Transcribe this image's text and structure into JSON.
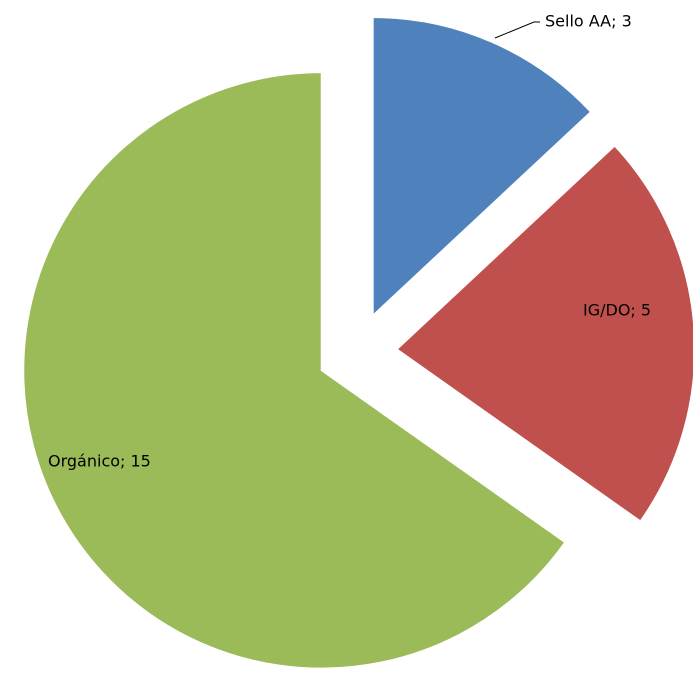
{
  "chart_data": {
    "type": "pie",
    "values": [
      3,
      5,
      15
    ],
    "value_labels": [
      "Sello AA; 3",
      "IG/DO; 5",
      "Orgánico; 15"
    ],
    "colors": [
      "#4f81bd",
      "#c0504d",
      "#9bbb59"
    ],
    "exploded": true
  }
}
